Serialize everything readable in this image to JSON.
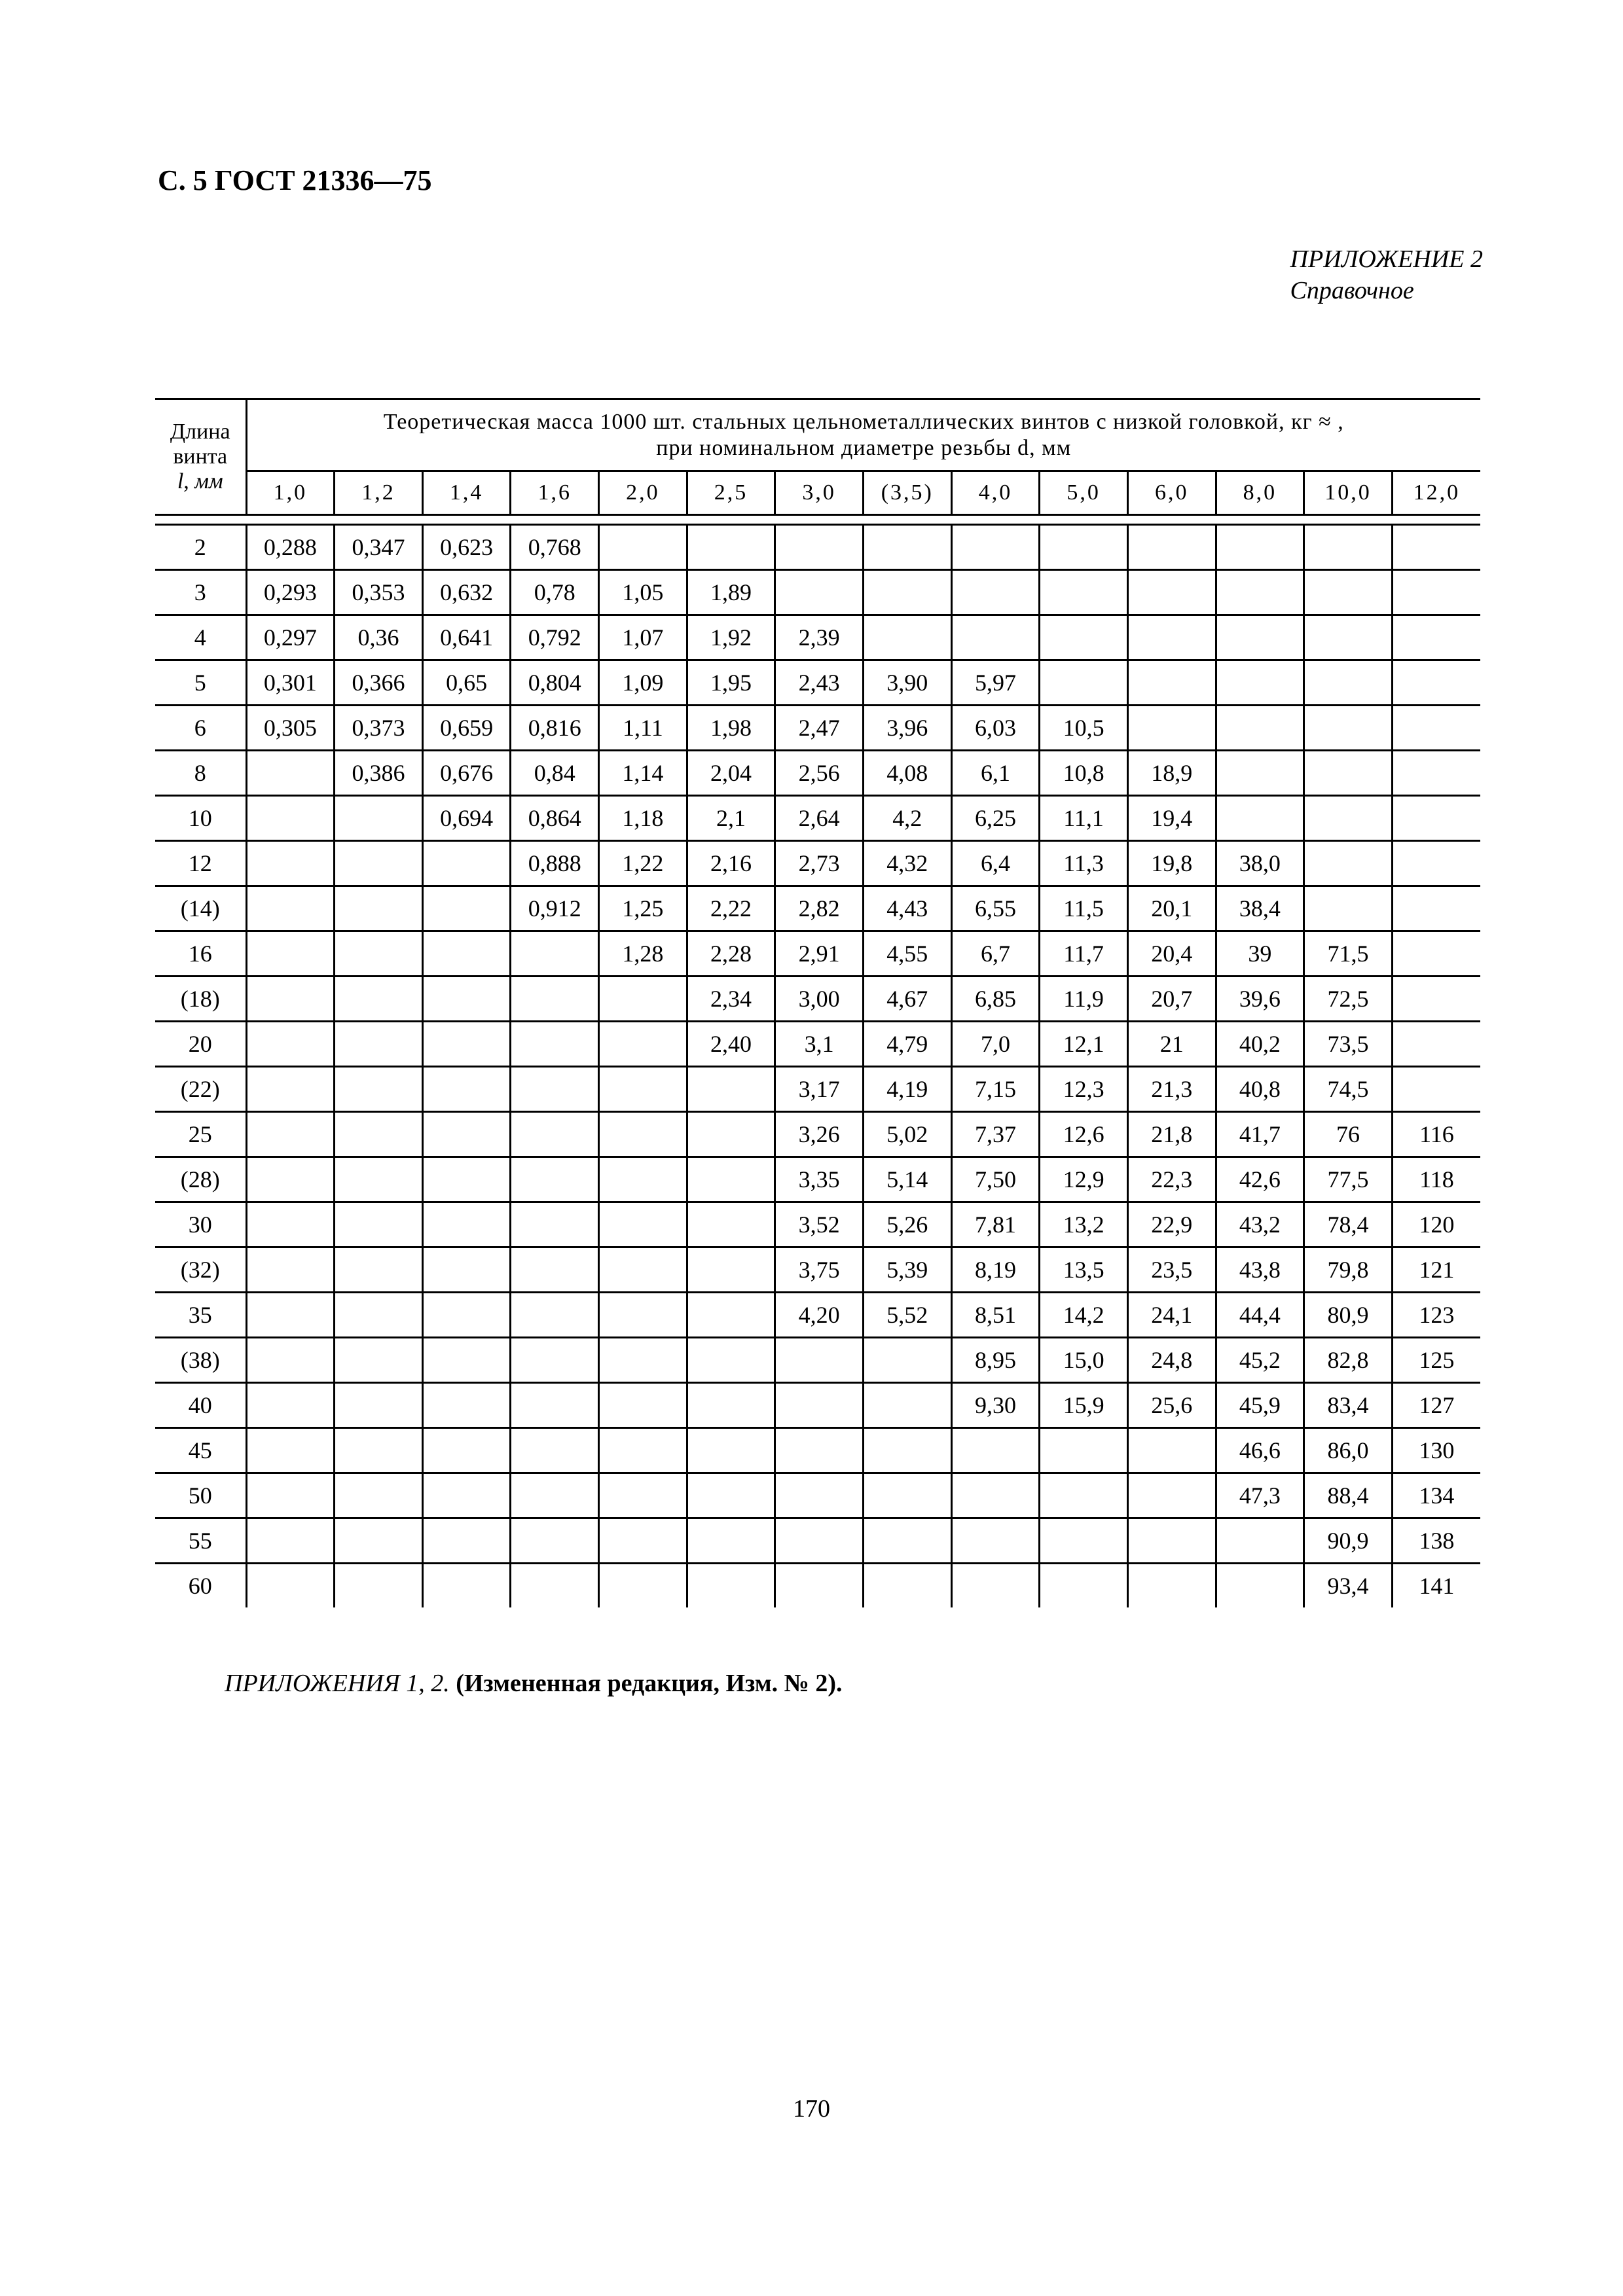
{
  "header": {
    "page_label": "С. 5 ГОСТ 21336—75"
  },
  "appendix": {
    "title": "ПРИЛОЖЕНИЕ 2",
    "subtitle": "Справочное"
  },
  "table": {
    "row_header": [
      "Длина",
      "винта",
      "l, мм"
    ],
    "title_line1": "Теоретическая масса 1000 шт. стальных цельнометаллических винтов с низкой головкой, кг ≈ ,",
    "title_line2": "при номинальном диаметре резьбы d, мм",
    "diameters": [
      "1,0",
      "1,2",
      "1,4",
      "1,6",
      "2,0",
      "2,5",
      "3,0",
      "(3,5)",
      "4,0",
      "5,0",
      "6,0",
      "8,0",
      "10,0",
      "12,0"
    ],
    "rows": [
      {
        "length": "2",
        "values": [
          "0,288",
          "0,347",
          "0,623",
          "0,768",
          "",
          "",
          "",
          "",
          "",
          "",
          "",
          "",
          "",
          ""
        ]
      },
      {
        "length": "3",
        "values": [
          "0,293",
          "0,353",
          "0,632",
          "0,78",
          "1,05",
          "1,89",
          "",
          "",
          "",
          "",
          "",
          "",
          "",
          ""
        ]
      },
      {
        "length": "4",
        "values": [
          "0,297",
          "0,36",
          "0,641",
          "0,792",
          "1,07",
          "1,92",
          "2,39",
          "",
          "",
          "",
          "",
          "",
          "",
          ""
        ]
      },
      {
        "length": "5",
        "values": [
          "0,301",
          "0,366",
          "0,65",
          "0,804",
          "1,09",
          "1,95",
          "2,43",
          "3,90",
          "5,97",
          "",
          "",
          "",
          "",
          ""
        ]
      },
      {
        "length": "6",
        "values": [
          "0,305",
          "0,373",
          "0,659",
          "0,816",
          "1,11",
          "1,98",
          "2,47",
          "3,96",
          "6,03",
          "10,5",
          "",
          "",
          "",
          ""
        ]
      },
      {
        "length": "8",
        "values": [
          "",
          "0,386",
          "0,676",
          "0,84",
          "1,14",
          "2,04",
          "2,56",
          "4,08",
          "6,1",
          "10,8",
          "18,9",
          "",
          "",
          ""
        ]
      },
      {
        "length": "10",
        "values": [
          "",
          "",
          "0,694",
          "0,864",
          "1,18",
          "2,1",
          "2,64",
          "4,2",
          "6,25",
          "11,1",
          "19,4",
          "",
          "",
          ""
        ]
      },
      {
        "length": "12",
        "values": [
          "",
          "",
          "",
          "0,888",
          "1,22",
          "2,16",
          "2,73",
          "4,32",
          "6,4",
          "11,3",
          "19,8",
          "38,0",
          "",
          ""
        ]
      },
      {
        "length": "(14)",
        "values": [
          "",
          "",
          "",
          "0,912",
          "1,25",
          "2,22",
          "2,82",
          "4,43",
          "6,55",
          "11,5",
          "20,1",
          "38,4",
          "",
          ""
        ]
      },
      {
        "length": "16",
        "values": [
          "",
          "",
          "",
          "",
          "1,28",
          "2,28",
          "2,91",
          "4,55",
          "6,7",
          "11,7",
          "20,4",
          "39",
          "71,5",
          ""
        ]
      },
      {
        "length": "(18)",
        "values": [
          "",
          "",
          "",
          "",
          "",
          "2,34",
          "3,00",
          "4,67",
          "6,85",
          "11,9",
          "20,7",
          "39,6",
          "72,5",
          ""
        ]
      },
      {
        "length": "20",
        "values": [
          "",
          "",
          "",
          "",
          "",
          "2,40",
          "3,1",
          "4,79",
          "7,0",
          "12,1",
          "21",
          "40,2",
          "73,5",
          ""
        ]
      },
      {
        "length": "(22)",
        "values": [
          "",
          "",
          "",
          "",
          "",
          "",
          "3,17",
          "4,19",
          "7,15",
          "12,3",
          "21,3",
          "40,8",
          "74,5",
          ""
        ]
      },
      {
        "length": "25",
        "values": [
          "",
          "",
          "",
          "",
          "",
          "",
          "3,26",
          "5,02",
          "7,37",
          "12,6",
          "21,8",
          "41,7",
          "76",
          "116"
        ]
      },
      {
        "length": "(28)",
        "values": [
          "",
          "",
          "",
          "",
          "",
          "",
          "3,35",
          "5,14",
          "7,50",
          "12,9",
          "22,3",
          "42,6",
          "77,5",
          "118"
        ]
      },
      {
        "length": "30",
        "values": [
          "",
          "",
          "",
          "",
          "",
          "",
          "3,52",
          "5,26",
          "7,81",
          "13,2",
          "22,9",
          "43,2",
          "78,4",
          "120"
        ]
      },
      {
        "length": "(32)",
        "values": [
          "",
          "",
          "",
          "",
          "",
          "",
          "3,75",
          "5,39",
          "8,19",
          "13,5",
          "23,5",
          "43,8",
          "79,8",
          "121"
        ]
      },
      {
        "length": "35",
        "values": [
          "",
          "",
          "",
          "",
          "",
          "",
          "4,20",
          "5,52",
          "8,51",
          "14,2",
          "24,1",
          "44,4",
          "80,9",
          "123"
        ]
      },
      {
        "length": "(38)",
        "values": [
          "",
          "",
          "",
          "",
          "",
          "",
          "",
          "",
          "8,95",
          "15,0",
          "24,8",
          "45,2",
          "82,8",
          "125"
        ]
      },
      {
        "length": "40",
        "values": [
          "",
          "",
          "",
          "",
          "",
          "",
          "",
          "",
          "9,30",
          "15,9",
          "25,6",
          "45,9",
          "83,4",
          "127"
        ]
      },
      {
        "length": "45",
        "values": [
          "",
          "",
          "",
          "",
          "",
          "",
          "",
          "",
          "",
          "",
          "",
          "46,6",
          "86,0",
          "130"
        ]
      },
      {
        "length": "50",
        "values": [
          "",
          "",
          "",
          "",
          "",
          "",
          "",
          "",
          "",
          "",
          "",
          "47,3",
          "88,4",
          "134"
        ]
      },
      {
        "length": "55",
        "values": [
          "",
          "",
          "",
          "",
          "",
          "",
          "",
          "",
          "",
          "",
          "",
          "",
          "90,9",
          "138"
        ]
      },
      {
        "length": "60",
        "values": [
          "",
          "",
          "",
          "",
          "",
          "",
          "",
          "",
          "",
          "",
          "",
          "",
          "93,4",
          "141"
        ]
      }
    ]
  },
  "footer": {
    "italic": "ПРИЛОЖЕНИЯ 1, 2.",
    "bold": "(Измененная редакция, Изм. № 2)."
  },
  "page_number": "170"
}
